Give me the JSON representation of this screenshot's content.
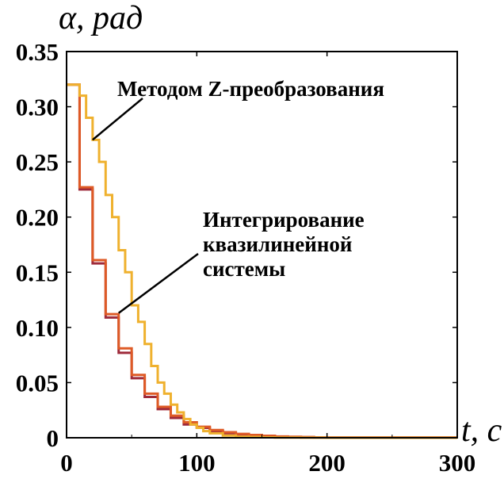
{
  "chart_data": {
    "type": "line",
    "step": true,
    "xlabel": "t, c",
    "ylabel": "α, рад",
    "xlim": [
      0,
      300
    ],
    "ylim": [
      0,
      0.35
    ],
    "x_ticks": [
      "0",
      "100",
      "200",
      "300"
    ],
    "y_ticks": [
      "0",
      "0.05",
      "0.10",
      "0.15",
      "0.20",
      "0.25",
      "0.30",
      "0.35"
    ],
    "grid": false,
    "annotations": [
      {
        "lines": [
          "Методом Z-преобразования"
        ],
        "series_index": 2,
        "pointer_at": [
          20,
          0.27
        ]
      },
      {
        "lines": [
          "Интегрирование",
          "квазилинейной",
          "системы"
        ],
        "series_index": 1,
        "pointer_at": [
          40,
          0.113
        ]
      }
    ],
    "series": [
      {
        "color": "#9e2a3a",
        "x": [
          0,
          10,
          20,
          30,
          40,
          50,
          60,
          70,
          80,
          90,
          100,
          110,
          120,
          130,
          140,
          150,
          160,
          170,
          180,
          190,
          200,
          300
        ],
        "values": [
          0.32,
          0.225,
          0.158,
          0.109,
          0.077,
          0.054,
          0.037,
          0.026,
          0.018,
          0.012,
          0.009,
          0.006,
          0.004,
          0.003,
          0.002,
          0.0015,
          0.001,
          0.0007,
          0.0005,
          0.0003,
          0.0002,
          0.0002
        ]
      },
      {
        "color": "#de5a26",
        "x": [
          0,
          10,
          20,
          30,
          40,
          50,
          60,
          70,
          80,
          90,
          100,
          110,
          120,
          130,
          140,
          150,
          160,
          170,
          180,
          190,
          200,
          300
        ],
        "values": [
          0.32,
          0.227,
          0.161,
          0.112,
          0.081,
          0.057,
          0.04,
          0.028,
          0.02,
          0.014,
          0.01,
          0.007,
          0.005,
          0.0035,
          0.0025,
          0.0018,
          0.0012,
          0.0009,
          0.0006,
          0.0004,
          0.0003,
          0.0003
        ]
      },
      {
        "color": "#efb12e",
        "x": [
          0,
          10,
          15,
          20,
          25,
          30,
          35,
          40,
          45,
          50,
          55,
          60,
          65,
          70,
          75,
          80,
          85,
          90,
          95,
          100,
          105,
          110,
          120,
          130,
          140,
          150,
          160,
          180,
          200,
          250,
          300
        ],
        "values": [
          0.32,
          0.31,
          0.29,
          0.27,
          0.25,
          0.22,
          0.2,
          0.17,
          0.15,
          0.12,
          0.105,
          0.085,
          0.065,
          0.05,
          0.04,
          0.03,
          0.023,
          0.017,
          0.012,
          0.009,
          0.006,
          0.004,
          0.002,
          0.001,
          0.0007,
          0.0004,
          0.0002,
          0.0001,
          0,
          0,
          0
        ]
      }
    ]
  }
}
